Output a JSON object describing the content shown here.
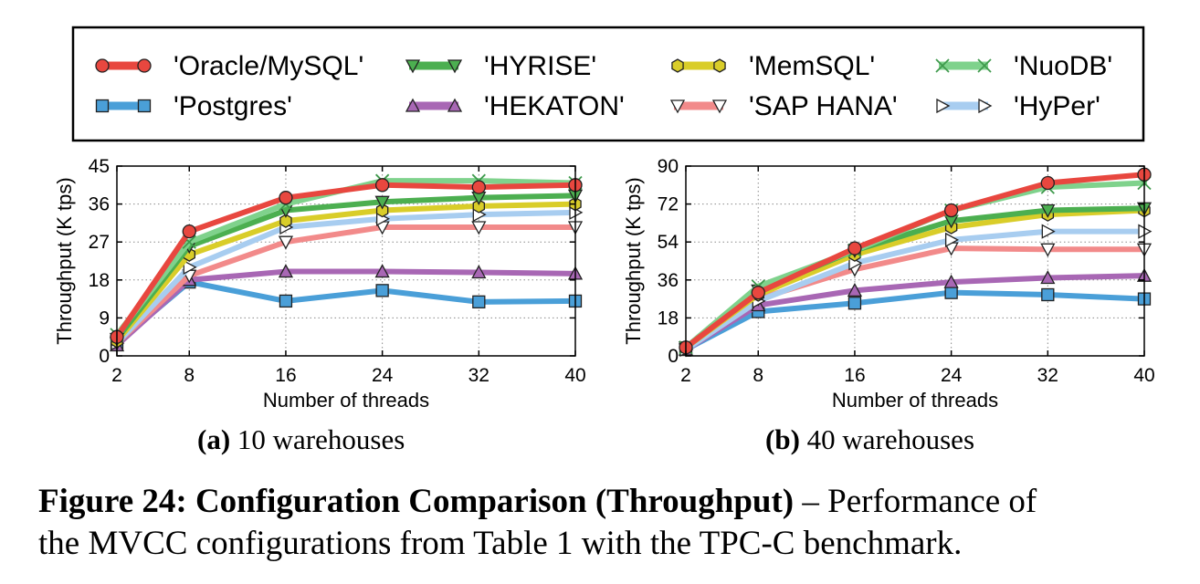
{
  "legend": {
    "entries": [
      {
        "label": "'Oracle/MySQL'",
        "color": "#e8473f",
        "marker": "circle"
      },
      {
        "label": "'Postgres'",
        "color": "#4a9fd8",
        "marker": "square"
      },
      {
        "label": "'HYRISE'",
        "color": "#4caf50",
        "marker": "triangle-down"
      },
      {
        "label": "'HEKATON'",
        "color": "#a867b4",
        "marker": "triangle-up"
      },
      {
        "label": "'MemSQL'",
        "color": "#d9cd29",
        "marker": "hexagon"
      },
      {
        "label": "'SAP HANA'",
        "color": "#f28a8a",
        "marker": "triangle-down-open"
      },
      {
        "label": "'NuoDB'",
        "color": "#7fd28c",
        "marker": "x"
      },
      {
        "label": "'HyPer'",
        "color": "#a8cdf0",
        "marker": "triangle-right-open"
      }
    ]
  },
  "chart_data": [
    {
      "type": "line",
      "subcaption_letter": "(a)",
      "subcaption_text": "10 warehouses",
      "xlabel": "Number of threads",
      "ylabel": "Throughput (K tps)",
      "x": [
        2,
        8,
        16,
        24,
        32,
        40
      ],
      "ylim": [
        0,
        45
      ],
      "yticks": [
        0,
        9,
        18,
        27,
        36,
        45
      ],
      "grid": true,
      "series": [
        {
          "name": "'Postgres'",
          "values": [
            3,
            17.5,
            13,
            15.5,
            12.8,
            13
          ]
        },
        {
          "name": "'HEKATON'",
          "values": [
            2.5,
            18,
            20,
            20,
            19.8,
            19.5
          ]
        },
        {
          "name": "'SAP HANA'",
          "values": [
            3,
            19,
            27,
            30.5,
            30.5,
            30.5
          ]
        },
        {
          "name": "'HyPer'",
          "values": [
            3,
            21,
            30.5,
            32.5,
            33.5,
            34
          ]
        },
        {
          "name": "'MemSQL'",
          "values": [
            3.5,
            24,
            32,
            34.5,
            35.5,
            36
          ]
        },
        {
          "name": "'HYRISE'",
          "values": [
            4,
            26,
            34.5,
            36.5,
            37.5,
            38
          ]
        },
        {
          "name": "'NuoDB'",
          "values": [
            5,
            27,
            36,
            41.5,
            41.5,
            41
          ]
        },
        {
          "name": "'Oracle/MySQL'",
          "values": [
            4.5,
            29.5,
            37.5,
            40.5,
            40,
            40.5
          ]
        }
      ]
    },
    {
      "type": "line",
      "subcaption_letter": "(b)",
      "subcaption_text": "40 warehouses",
      "xlabel": "Number of threads",
      "ylabel": "Throughput (K tps)",
      "x": [
        2,
        8,
        16,
        24,
        32,
        40
      ],
      "ylim": [
        0,
        90
      ],
      "yticks": [
        0,
        18,
        36,
        54,
        72,
        90
      ],
      "grid": true,
      "series": [
        {
          "name": "'Postgres'",
          "values": [
            3,
            21,
            25,
            30,
            29,
            27
          ]
        },
        {
          "name": "'HEKATON'",
          "values": [
            3,
            24,
            31,
            35,
            37,
            38
          ]
        },
        {
          "name": "'SAP HANA'",
          "values": [
            3,
            27,
            41,
            51,
            50.5,
            50.5
          ]
        },
        {
          "name": "'HyPer'",
          "values": [
            3,
            26,
            44,
            55,
            59,
            59
          ]
        },
        {
          "name": "'MemSQL'",
          "values": [
            4,
            29,
            48,
            61,
            67,
            69
          ]
        },
        {
          "name": "'HYRISE'",
          "values": [
            4,
            31,
            50,
            64,
            69,
            70
          ]
        },
        {
          "name": "'NuoDB'",
          "values": [
            4,
            33,
            50,
            69,
            80,
            82
          ]
        },
        {
          "name": "'Oracle/MySQL'",
          "values": [
            4,
            30,
            51,
            69,
            82,
            86
          ]
        }
      ]
    }
  ],
  "caption": {
    "bold": "Figure 24: Configuration Comparison (Throughput)",
    "rest_line1": " – Performance of",
    "line2": "the MVCC configurations from Table 1 with the TPC-C benchmark."
  }
}
